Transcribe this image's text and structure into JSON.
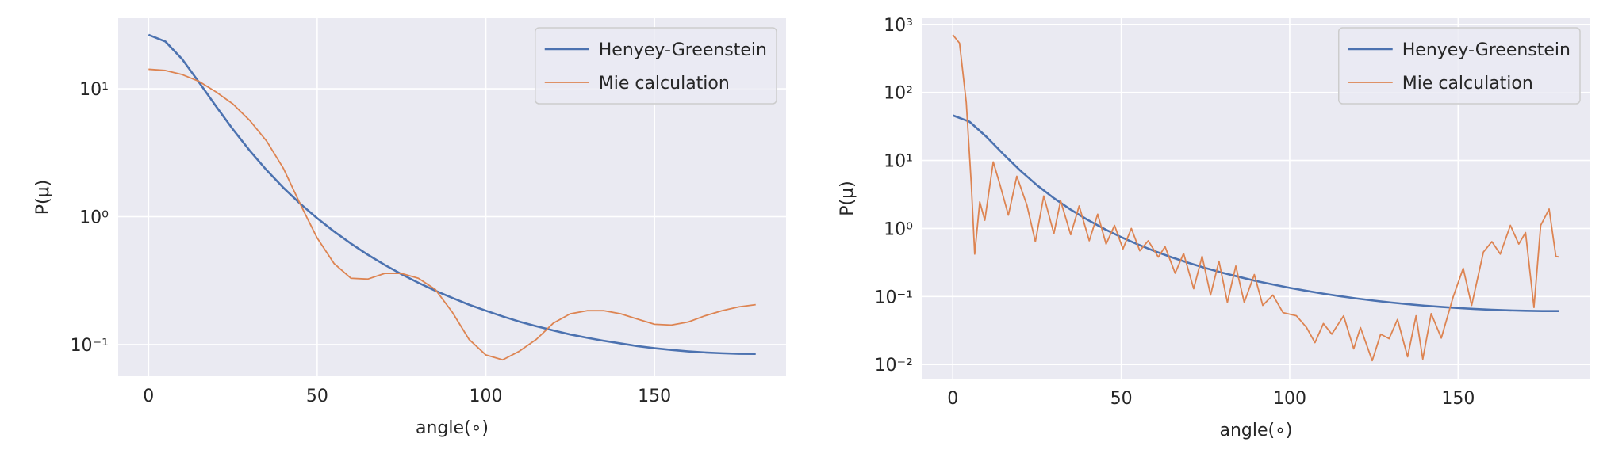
{
  "chart_data": [
    {
      "type": "line",
      "xlabel": "angle(∘)",
      "ylabel": "P(μ)",
      "log_y": true,
      "grid": true,
      "legend": "upper right",
      "xlim": [
        -9,
        189
      ],
      "ylim": [
        0.0565,
        35.6
      ],
      "xticks": [
        0,
        50,
        100,
        150
      ],
      "yticks": [
        {
          "value": 0.1,
          "label": "10⁻¹"
        },
        {
          "value": 1,
          "label": "10⁰"
        },
        {
          "value": 10,
          "label": "10¹"
        }
      ],
      "series": [
        {
          "name": "Henyey-Greenstein",
          "color": "#4c72b0",
          "width": 2.6,
          "x": [
            0,
            5,
            10,
            15,
            20,
            25,
            30,
            35,
            40,
            45,
            50,
            55,
            60,
            65,
            70,
            75,
            80,
            85,
            90,
            95,
            100,
            105,
            110,
            115,
            120,
            125,
            130,
            135,
            140,
            145,
            150,
            155,
            160,
            165,
            170,
            175,
            180
          ],
          "values": [
            26.4,
            23.4,
            17.0,
            11.2,
            7.3,
            4.82,
            3.28,
            2.31,
            1.68,
            1.26,
            0.972,
            0.766,
            0.616,
            0.504,
            0.42,
            0.355,
            0.304,
            0.264,
            0.232,
            0.205,
            0.184,
            0.166,
            0.151,
            0.139,
            0.129,
            0.12,
            0.113,
            0.107,
            0.102,
            0.0972,
            0.0937,
            0.0908,
            0.0885,
            0.0868,
            0.0856,
            0.0848,
            0.0846
          ]
        },
        {
          "name": "Mie calculation",
          "color": "#dd8452",
          "width": 1.8,
          "x": [
            0,
            5,
            10,
            15,
            20,
            25,
            30,
            35,
            40,
            45,
            50,
            55,
            60,
            65,
            70,
            75,
            80,
            85,
            90,
            95,
            100,
            105,
            110,
            115,
            120,
            125,
            130,
            135,
            140,
            145,
            150,
            155,
            160,
            165,
            170,
            175,
            180
          ],
          "values": [
            14.2,
            13.9,
            12.9,
            11.4,
            9.45,
            7.6,
            5.65,
            3.9,
            2.38,
            1.25,
            0.68,
            0.43,
            0.33,
            0.325,
            0.36,
            0.36,
            0.33,
            0.27,
            0.18,
            0.11,
            0.083,
            0.076,
            0.089,
            0.11,
            0.147,
            0.174,
            0.184,
            0.184,
            0.174,
            0.158,
            0.144,
            0.142,
            0.15,
            0.168,
            0.184,
            0.197,
            0.205
          ]
        }
      ]
    },
    {
      "type": "line",
      "xlabel": "angle(∘)",
      "ylabel": "P(μ)",
      "log_y": true,
      "grid": true,
      "legend": "upper right",
      "xlim": [
        -9,
        189
      ],
      "ylim": [
        0.0062,
        1231
      ],
      "xticks": [
        0,
        50,
        100,
        150
      ],
      "yticks": [
        {
          "value": 0.01,
          "label": "10⁻²"
        },
        {
          "value": 0.1,
          "label": "10⁻¹"
        },
        {
          "value": 1,
          "label": "10⁰"
        },
        {
          "value": 10,
          "label": "10¹"
        },
        {
          "value": 100,
          "label": "10²"
        },
        {
          "value": 1000,
          "label": "10³"
        }
      ],
      "series": [
        {
          "name": "Henyey-Greenstein",
          "color": "#4c72b0",
          "width": 2.6,
          "x": [
            0,
            5,
            10,
            15,
            20,
            25,
            30,
            35,
            40,
            45,
            50,
            55,
            60,
            65,
            70,
            75,
            80,
            85,
            90,
            95,
            100,
            105,
            110,
            115,
            120,
            125,
            130,
            135,
            140,
            145,
            150,
            155,
            160,
            165,
            170,
            175,
            180
          ],
          "values": [
            46.0,
            37.0,
            22.2,
            12.4,
            7.12,
            4.32,
            2.79,
            1.89,
            1.34,
            0.983,
            0.745,
            0.58,
            0.462,
            0.376,
            0.312,
            0.262,
            0.224,
            0.194,
            0.169,
            0.15,
            0.134,
            0.121,
            0.11,
            0.101,
            0.0933,
            0.0869,
            0.0816,
            0.0771,
            0.0733,
            0.0702,
            0.0676,
            0.0655,
            0.0638,
            0.0625,
            0.0617,
            0.0611,
            0.061
          ]
        },
        {
          "name": "Mie calculation",
          "color": "#dd8452",
          "width": 1.8,
          "x": [
            0,
            2,
            4,
            5.5,
            6.5,
            8,
            9.5,
            12,
            14,
            16.5,
            19,
            22,
            24.5,
            27,
            30,
            32,
            35,
            37.5,
            40.5,
            43,
            45.5,
            48,
            50.5,
            53,
            55.5,
            58,
            61,
            63,
            66,
            68.5,
            71.5,
            74,
            76.5,
            79,
            81.5,
            84,
            86.5,
            89.5,
            92,
            95,
            98,
            102,
            105,
            107.5,
            110,
            112.5,
            116,
            119,
            121,
            124.5,
            127,
            129.5,
            132,
            135,
            137.5,
            139.5,
            142,
            145,
            148.5,
            151.5,
            154,
            157.5,
            160,
            162.5,
            165.5,
            168,
            170,
            172.5,
            174.5,
            177,
            179,
            180
          ],
          "values": [
            702,
            530,
            71,
            4.4,
            0.42,
            2.46,
            1.32,
            9.5,
            4.4,
            1.57,
            5.85,
            2.2,
            0.64,
            3.0,
            0.84,
            2.55,
            0.81,
            2.14,
            0.66,
            1.62,
            0.59,
            1.11,
            0.5,
            1.0,
            0.47,
            0.66,
            0.38,
            0.54,
            0.22,
            0.43,
            0.13,
            0.39,
            0.105,
            0.33,
            0.082,
            0.28,
            0.082,
            0.21,
            0.074,
            0.105,
            0.058,
            0.052,
            0.035,
            0.021,
            0.04,
            0.028,
            0.052,
            0.017,
            0.035,
            0.0114,
            0.028,
            0.024,
            0.046,
            0.013,
            0.052,
            0.012,
            0.056,
            0.0245,
            0.098,
            0.26,
            0.074,
            0.45,
            0.64,
            0.42,
            1.11,
            0.59,
            0.87,
            0.069,
            1.11,
            1.93,
            0.39,
            0.38
          ]
        }
      ]
    }
  ]
}
